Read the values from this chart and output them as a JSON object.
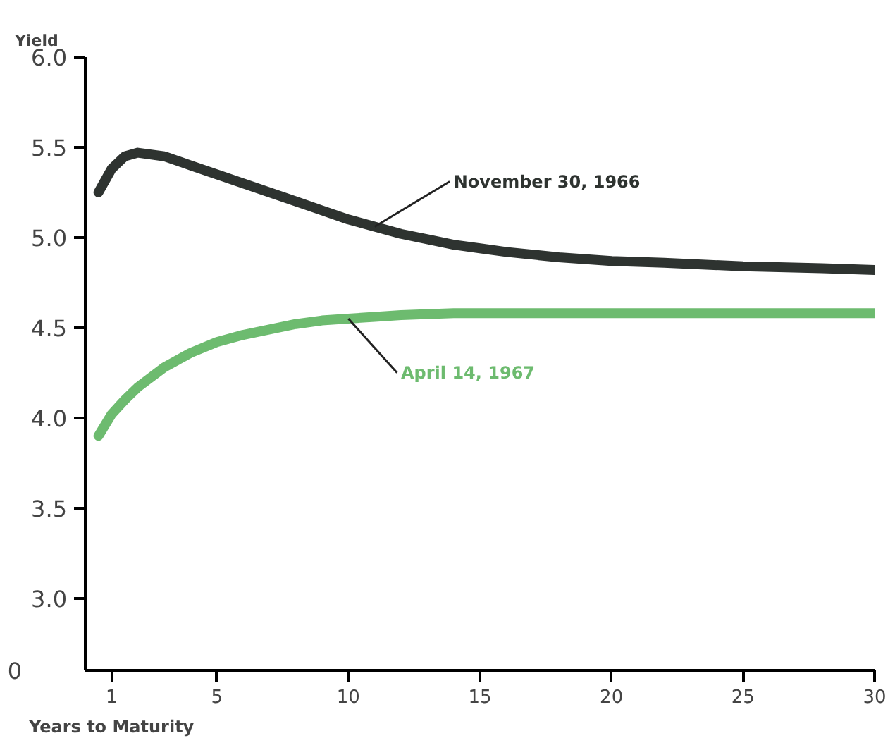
{
  "chart_data": {
    "type": "line",
    "xlabel": "Years to Maturity",
    "ylabel": "Yield",
    "xlim": [
      0,
      30
    ],
    "xticks": [
      {
        "value": 1,
        "label": "1"
      },
      5,
      10,
      15,
      20,
      25,
      30
    ],
    "ylim": [
      2.6,
      6.0
    ],
    "yticks": [
      {
        "value": 3.0,
        "label": "3.0"
      },
      {
        "value": 3.5,
        "label": "3.5"
      },
      {
        "value": 4.0,
        "label": "4.0"
      },
      {
        "value": 4.5,
        "label": "4.5"
      },
      {
        "value": 5.0,
        "label": "5.0"
      },
      {
        "value": 5.5,
        "label": "5.5"
      },
      {
        "value": 6.0,
        "label": "6.0"
      }
    ],
    "grid": false,
    "annotations": [
      "0"
    ],
    "series": [
      {
        "name": "November 30, 1966",
        "color": "#2e3330",
        "x": [
          0.5,
          1,
          1.5,
          2,
          3,
          4,
          5,
          6,
          7,
          8,
          9,
          10,
          11,
          12,
          13,
          14,
          15,
          16,
          18,
          20,
          22,
          25,
          28,
          30
        ],
        "values": [
          5.25,
          5.38,
          5.45,
          5.47,
          5.45,
          5.4,
          5.35,
          5.3,
          5.25,
          5.2,
          5.15,
          5.1,
          5.06,
          5.02,
          4.99,
          4.96,
          4.94,
          4.92,
          4.89,
          4.87,
          4.86,
          4.84,
          4.83,
          4.82
        ]
      },
      {
        "name": "April 14, 1967",
        "color": "#6dbb6f",
        "x": [
          0.5,
          1,
          1.5,
          2,
          3,
          4,
          5,
          6,
          7,
          8,
          9,
          10,
          11,
          12,
          14,
          16,
          20,
          25,
          30
        ],
        "values": [
          3.9,
          4.02,
          4.1,
          4.17,
          4.28,
          4.36,
          4.42,
          4.46,
          4.49,
          4.52,
          4.54,
          4.55,
          4.56,
          4.57,
          4.58,
          4.58,
          4.58,
          4.58,
          4.58
        ]
      }
    ]
  }
}
